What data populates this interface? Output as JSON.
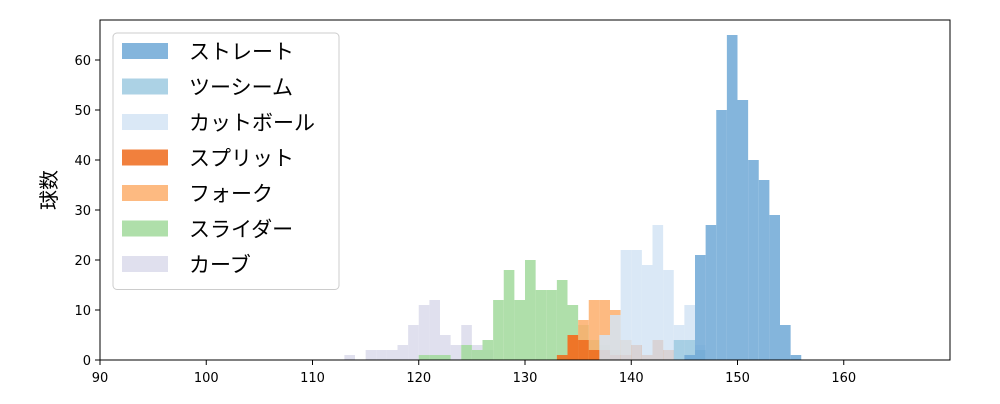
{
  "chart_data": {
    "type": "histogram",
    "title": "",
    "xlabel": "",
    "ylabel": "球数",
    "xlim": [
      90,
      170
    ],
    "ylim": [
      0,
      68
    ],
    "x_ticks": [
      90,
      100,
      110,
      120,
      130,
      140,
      150,
      160
    ],
    "y_ticks": [
      0,
      10,
      20,
      30,
      40,
      50,
      60
    ],
    "grid": false,
    "legend_position": "top-left",
    "bin_width": 1,
    "series": [
      {
        "name": "カーブ",
        "color": "#dadaeb",
        "bins": [
          [
            113,
            1
          ],
          [
            114,
            0
          ],
          [
            115,
            2
          ],
          [
            116,
            2
          ],
          [
            117,
            2
          ],
          [
            118,
            3
          ],
          [
            119,
            7
          ],
          [
            120,
            11
          ],
          [
            121,
            12
          ],
          [
            122,
            5
          ],
          [
            123,
            3
          ],
          [
            124,
            7
          ],
          [
            125,
            3
          ],
          [
            126,
            2
          ]
        ]
      },
      {
        "name": "スライダー",
        "color": "#a1d99b",
        "bins": [
          [
            120,
            1
          ],
          [
            121,
            1
          ],
          [
            122,
            1
          ],
          [
            124,
            3
          ],
          [
            125,
            2
          ],
          [
            126,
            4
          ],
          [
            127,
            12
          ],
          [
            128,
            18
          ],
          [
            129,
            12
          ],
          [
            130,
            20
          ],
          [
            131,
            14
          ],
          [
            132,
            14
          ],
          [
            133,
            16
          ],
          [
            134,
            11
          ],
          [
            135,
            7
          ],
          [
            136,
            4
          ],
          [
            137,
            3
          ],
          [
            138,
            2
          ],
          [
            139,
            1
          ]
        ]
      },
      {
        "name": "フォーク",
        "color": "#fdae6b",
        "bins": [
          [
            134,
            5
          ],
          [
            135,
            8
          ],
          [
            136,
            12
          ],
          [
            137,
            12
          ],
          [
            138,
            10
          ],
          [
            139,
            4
          ],
          [
            140,
            3
          ],
          [
            141,
            1
          ],
          [
            142,
            4
          ],
          [
            143,
            2
          ]
        ]
      },
      {
        "name": "スプリット",
        "color": "#ef6a1b",
        "bins": [
          [
            133,
            1
          ],
          [
            134,
            5
          ],
          [
            135,
            4
          ],
          [
            136,
            2
          ],
          [
            137,
            2
          ],
          [
            138,
            1
          ],
          [
            139,
            1
          ],
          [
            140,
            3
          ],
          [
            141,
            1
          ],
          [
            142,
            4
          ],
          [
            143,
            2
          ],
          [
            145,
            1
          ]
        ]
      },
      {
        "name": "カットボール",
        "color": "#d4e4f4",
        "bins": [
          [
            137,
            5
          ],
          [
            138,
            9
          ],
          [
            139,
            22
          ],
          [
            140,
            22
          ],
          [
            141,
            19
          ],
          [
            142,
            27
          ],
          [
            143,
            18
          ],
          [
            144,
            7
          ],
          [
            145,
            11
          ],
          [
            146,
            3
          ]
        ]
      },
      {
        "name": "ツーシーム",
        "color": "#9ecae1",
        "bins": [
          [
            144,
            4
          ],
          [
            145,
            4
          ],
          [
            146,
            2
          ]
        ]
      },
      {
        "name": "ストレート",
        "color": "#6fa8d6",
        "bins": [
          [
            145,
            1
          ],
          [
            146,
            21
          ],
          [
            147,
            27
          ],
          [
            148,
            50
          ],
          [
            149,
            65
          ],
          [
            150,
            52
          ],
          [
            151,
            40
          ],
          [
            152,
            36
          ],
          [
            153,
            29
          ],
          [
            154,
            7
          ],
          [
            155,
            1
          ]
        ]
      }
    ],
    "legend_order": [
      "ストレート",
      "ツーシーム",
      "カットボール",
      "スプリット",
      "フォーク",
      "スライダー",
      "カーブ"
    ]
  }
}
